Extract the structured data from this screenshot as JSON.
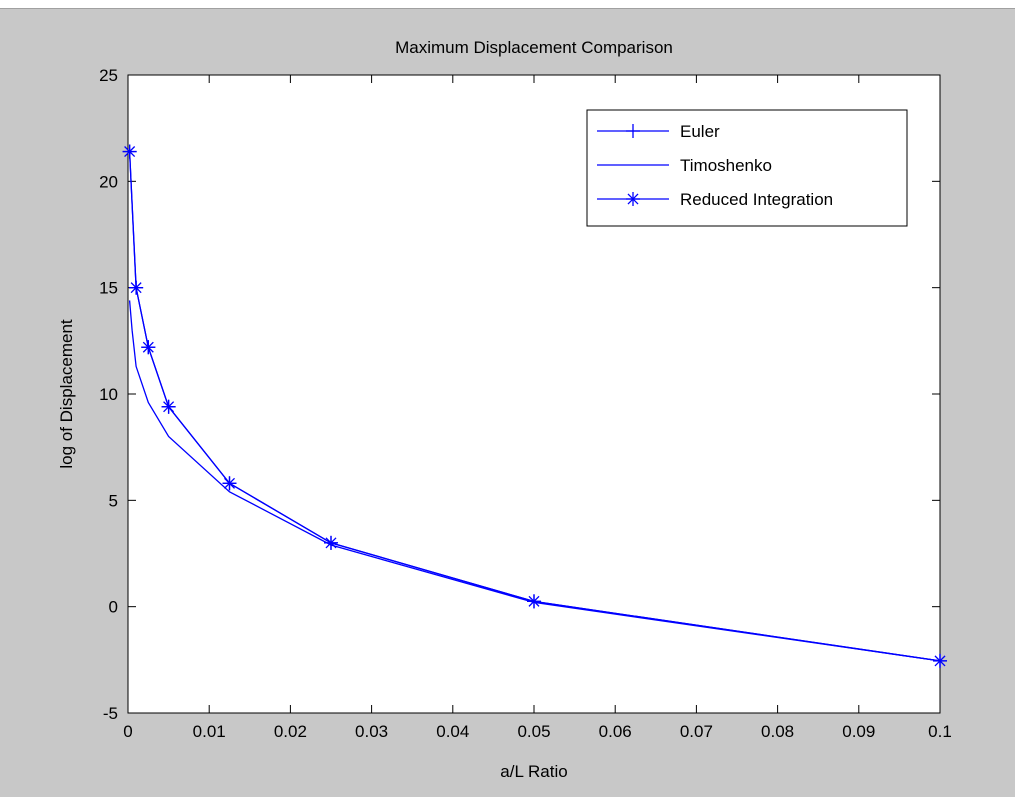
{
  "chart_data": {
    "type": "line",
    "title": "Maximum Displacement Comparison",
    "xlabel": "a/L Ratio",
    "ylabel": "log of Displacement",
    "xlim": [
      0,
      0.1
    ],
    "ylim": [
      -5,
      25
    ],
    "xticks": [
      "0",
      "0.01",
      "0.02",
      "0.03",
      "0.04",
      "0.05",
      "0.06",
      "0.07",
      "0.08",
      "0.09",
      "0.1"
    ],
    "yticks": [
      "-5",
      "0",
      "5",
      "10",
      "15",
      "20",
      "25"
    ],
    "grid": false,
    "legend_position": "top-right",
    "series": [
      {
        "name": "Euler",
        "marker": "plus",
        "color": "#0000ff",
        "x": [
          0.0002,
          0.001,
          0.0025,
          0.005,
          0.0125,
          0.025,
          0.05,
          0.1
        ],
        "y": [
          21.4,
          15.0,
          12.2,
          9.4,
          5.8,
          3.0,
          0.25,
          -2.55
        ]
      },
      {
        "name": "Timoshenko",
        "marker": "none",
        "color": "#0000ff",
        "x": [
          0.0002,
          0.0005,
          0.001,
          0.0025,
          0.005,
          0.0125,
          0.025,
          0.05,
          0.1
        ],
        "y": [
          14.4,
          13.0,
          11.3,
          9.6,
          8.0,
          5.4,
          2.9,
          0.2,
          -2.55
        ]
      },
      {
        "name": "Reduced Integration",
        "marker": "star",
        "color": "#0000ff",
        "x": [
          0.0002,
          0.001,
          0.0025,
          0.005,
          0.0125,
          0.025,
          0.05,
          0.1
        ],
        "y": [
          21.4,
          15.0,
          12.2,
          9.4,
          5.8,
          3.0,
          0.25,
          -2.55
        ]
      }
    ]
  }
}
